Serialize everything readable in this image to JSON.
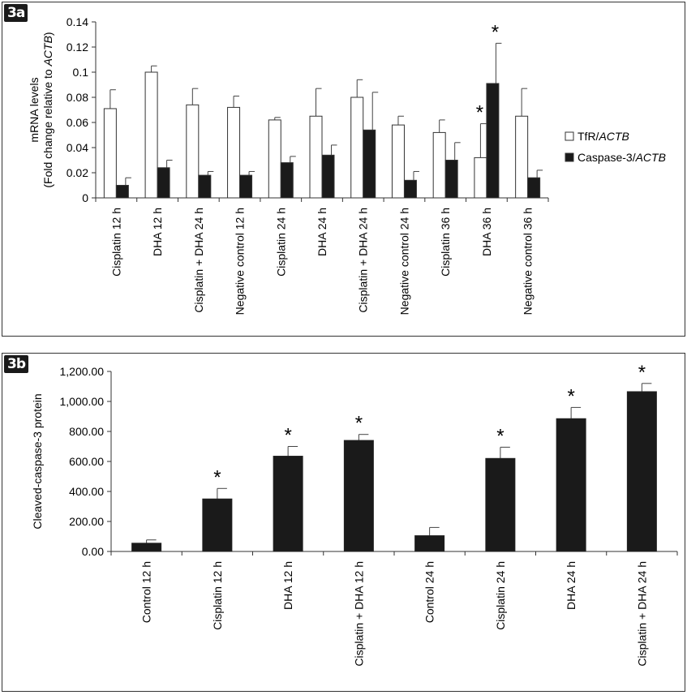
{
  "chart_data": [
    {
      "panel_label": "3a",
      "type": "bar",
      "ylabel_line1": "mRNA levels",
      "ylabel_line2_prefix": "(Fold change relative to ",
      "ylabel_line2_italic": "ACTB",
      "ylabel_line2_suffix": ")",
      "ylim": [
        0,
        0.14
      ],
      "yticks": [
        "0",
        "0.02",
        "0.04",
        "0.06",
        "0.08",
        "0.1",
        "0.12",
        "0.14"
      ],
      "categories": [
        "Cisplatin 12 h",
        "DHA 12 h",
        "Cisplatin + DHA 24 h",
        "Negative control 12 h",
        "Cisplatin 24 h",
        "DHA 24 h",
        "Cisplatin + DHA 24 h",
        "Negative control 24 h",
        "Cisplatin 36 h",
        "DHA 36 h",
        "Negative control 36 h"
      ],
      "series": [
        {
          "legend_prefix": "TfR/",
          "legend_italic": "ACTB",
          "color": "#ffffff",
          "values": [
            0.071,
            0.1,
            0.074,
            0.072,
            0.062,
            0.065,
            0.08,
            0.058,
            0.052,
            0.032,
            0.065
          ],
          "errors": [
            0.015,
            0.005,
            0.013,
            0.009,
            0.002,
            0.022,
            0.014,
            0.007,
            0.01,
            0.027,
            0.022
          ],
          "significant": [
            false,
            false,
            false,
            false,
            false,
            false,
            false,
            false,
            false,
            true,
            false
          ]
        },
        {
          "legend_prefix": "Caspase-3/",
          "legend_italic": "ACTB",
          "color": "#1a1a1a",
          "values": [
            0.01,
            0.024,
            0.018,
            0.018,
            0.028,
            0.034,
            0.054,
            0.014,
            0.03,
            0.091,
            0.016
          ],
          "errors": [
            0.006,
            0.006,
            0.003,
            0.003,
            0.005,
            0.008,
            0.03,
            0.007,
            0.014,
            0.032,
            0.006
          ],
          "significant": [
            false,
            false,
            false,
            false,
            false,
            false,
            false,
            false,
            false,
            true,
            false
          ]
        }
      ],
      "legend_position": "right"
    },
    {
      "panel_label": "3b",
      "type": "bar",
      "ylabel": "Cleaved-caspase-3 protein",
      "ylim": [
        0,
        1200
      ],
      "yticks": [
        "0.00",
        "200.00",
        "400.00",
        "600.00",
        "800.00",
        "1,000.00",
        "1,200.00"
      ],
      "categories": [
        "Control 12 h",
        "Cisplatin 12 h",
        "DHA 12 h",
        "Cisplatin + DHA 12 h",
        "Control 24 h",
        "Cisplatin 24 h",
        "DHA 24 h",
        "Cisplatin + DHA 24 h"
      ],
      "values": [
        55,
        350,
        635,
        740,
        105,
        620,
        885,
        1065
      ],
      "errors": [
        22,
        70,
        65,
        40,
        55,
        75,
        75,
        55
      ],
      "significant": [
        false,
        true,
        true,
        true,
        false,
        true,
        true,
        true
      ],
      "color": "#1a1a1a"
    }
  ],
  "significance_marker": "*"
}
